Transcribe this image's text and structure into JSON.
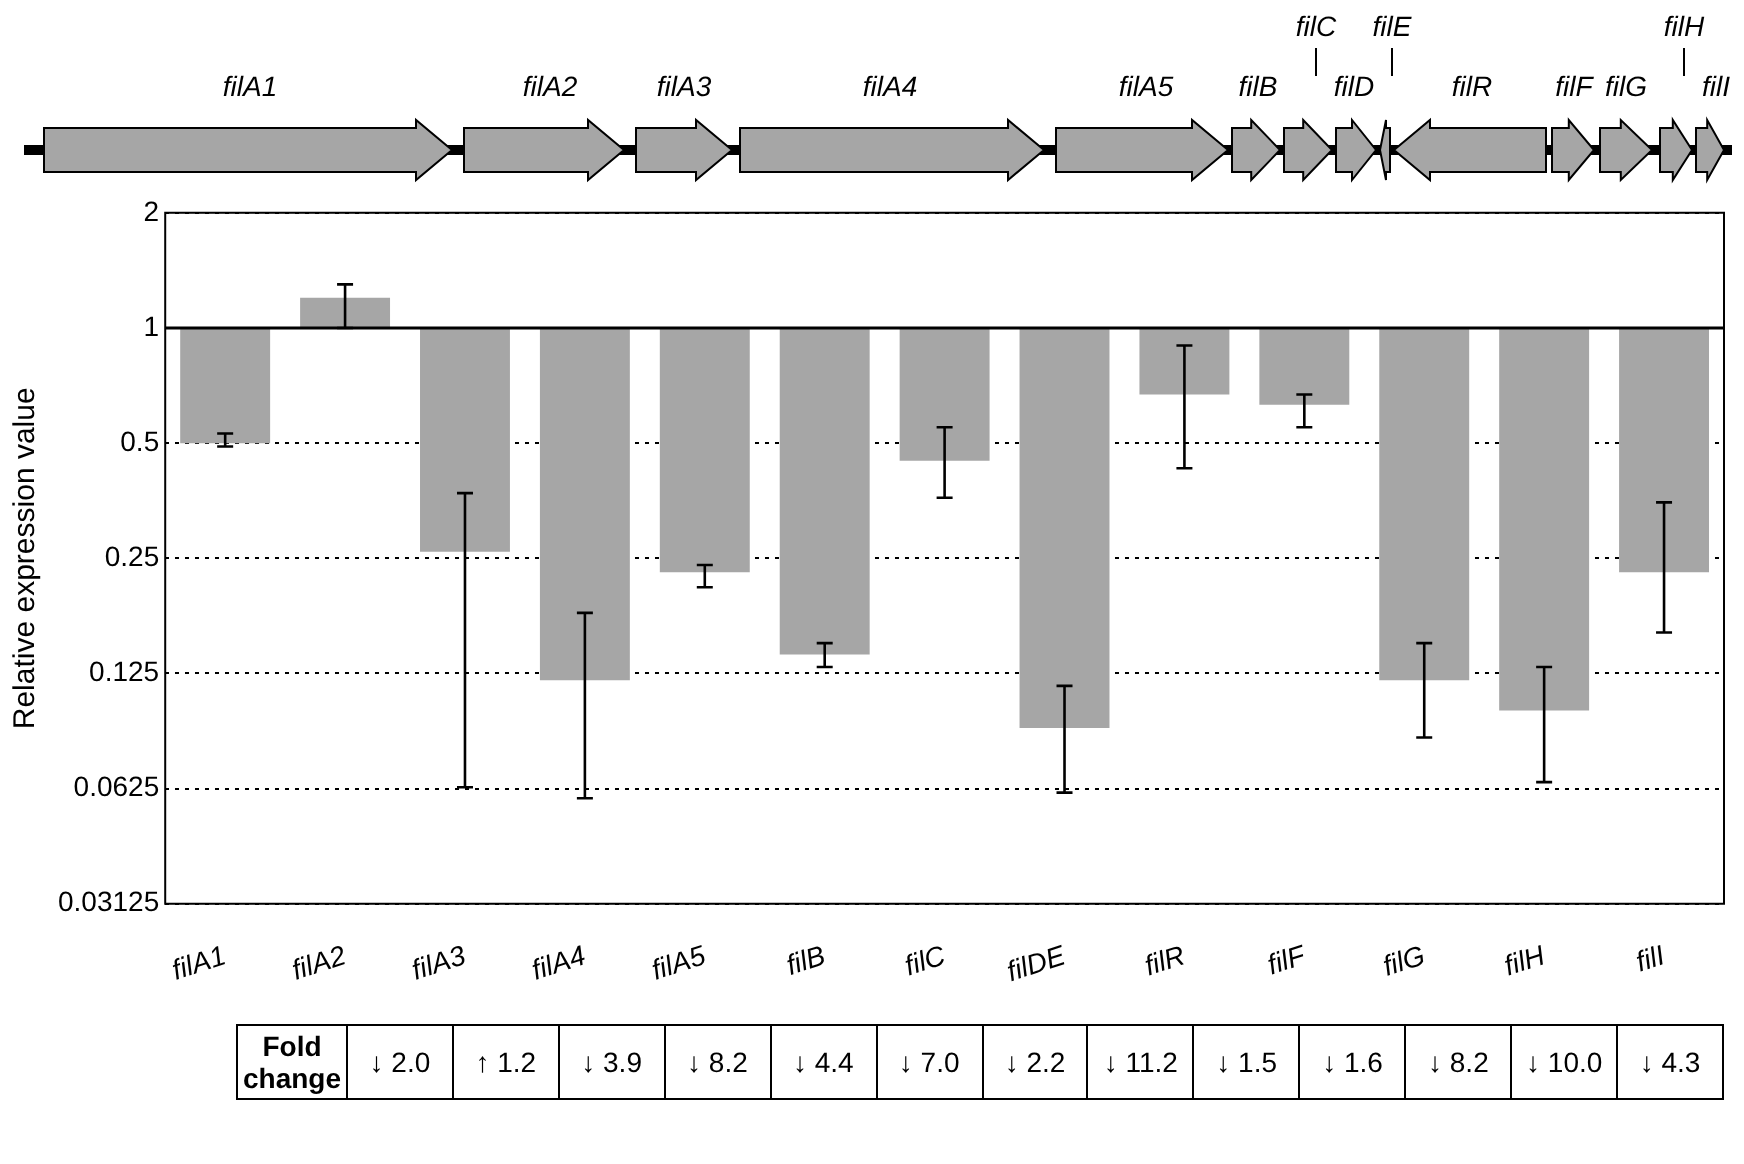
{
  "chart_data": {
    "type": "bar",
    "ylabel": "Relative expression value",
    "categories": [
      "filA1",
      "filA2",
      "filA3",
      "filA4",
      "filA5",
      "filB",
      "filC",
      "filDE",
      "filR",
      "filF",
      "filG",
      "filH",
      "filI"
    ],
    "base": [
      1,
      1,
      1,
      1,
      1,
      1,
      1,
      1,
      1,
      1,
      1,
      1,
      1
    ],
    "values": [
      -0.5,
      0.2,
      -0.74,
      -0.88,
      -0.77,
      -0.86,
      -0.55,
      -0.91,
      -0.33,
      -0.37,
      -0.88,
      -0.9,
      -0.77
    ],
    "errors": [
      [
        0.49,
        0.53
      ],
      [
        1.0,
        1.3
      ],
      [
        0.063,
        0.37
      ],
      [
        0.059,
        0.18
      ],
      [
        0.21,
        0.24
      ],
      [
        0.13,
        0.15
      ],
      [
        0.36,
        0.55
      ],
      [
        0.061,
        0.116
      ],
      [
        0.43,
        0.9
      ],
      [
        0.55,
        0.67
      ],
      [
        0.085,
        0.15
      ],
      [
        0.065,
        0.13
      ],
      [
        0.16,
        0.35
      ]
    ],
    "color": "#a6a6a6",
    "log": "y",
    "ylim": [
      0.03125,
      2
    ],
    "yticks": [
      0.03125,
      0.0625,
      0.125,
      0.25,
      0.5,
      1,
      2
    ],
    "grid": "y",
    "line_style": "dotted",
    "legend": false,
    "ref_lines": [
      {
        "axis": "y",
        "value": 1,
        "color": "#000000",
        "line_style": "solid"
      }
    ],
    "annotations": [
      "Fold change",
      "↓ 2.0",
      "↑ 1.2",
      "↓ 3.9",
      "↓ 8.2",
      "↓ 4.4",
      "↓ 7.0",
      "↓ 2.2",
      "↓ 11.2",
      "↓ 1.5",
      "↓ 1.6",
      "↓ 8.2",
      "↓ 10.0",
      "↓ 4.3",
      "filA1",
      "filA2",
      "filA3",
      "filA4",
      "filA5",
      "filB",
      "filC",
      "filD",
      "filE",
      "filR",
      "filF",
      "filG",
      "filH",
      "filI"
    ]
  }
}
